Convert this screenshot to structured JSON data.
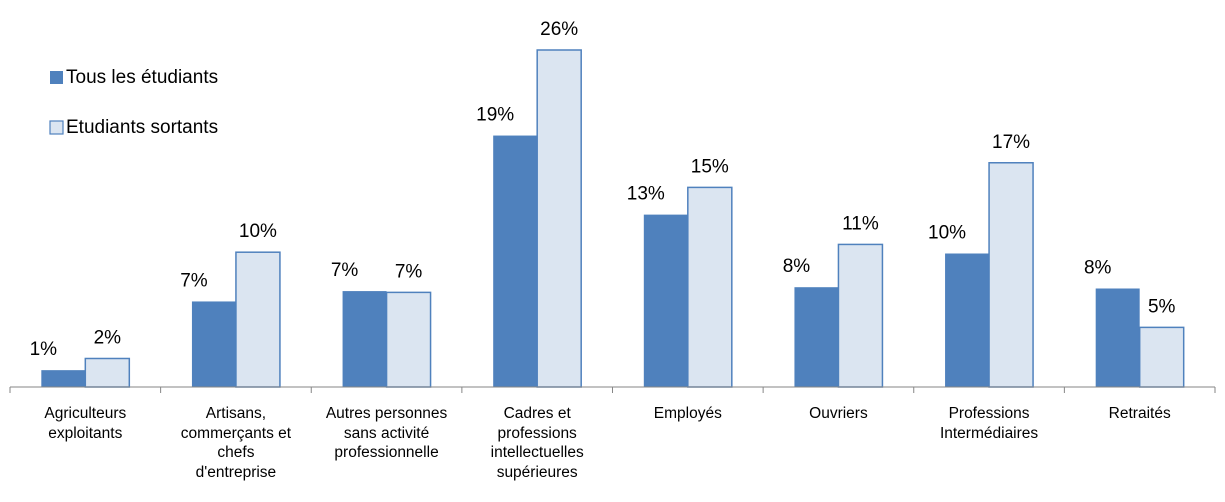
{
  "chart_data": {
    "type": "bar",
    "categories": [
      "Agriculteurs\nexploitants",
      "Artisans,\ncommerçants et\nchefs\nd'entreprise",
      "Autres personnes\nsans activité\nprofessionnelle",
      "Cadres et\nprofessions\nintellectuelles\nsupérieures",
      "Employés",
      "Ouvriers",
      "Professions\nIntermédiaires",
      "Retraités"
    ],
    "series": [
      {
        "name": "Tous les étudiants",
        "color": "#4f81bd",
        "values": [
          1.3,
          6.6,
          7.4,
          19.4,
          13.3,
          7.7,
          10.3,
          7.6
        ],
        "value_labels": [
          "1%",
          "7%",
          "7%",
          "19%",
          "13%",
          "8%",
          "10%",
          "8%"
        ]
      },
      {
        "name": "Etudiants sortants",
        "color": "#dbe5f1",
        "values": [
          2.2,
          10.4,
          7.3,
          26.0,
          15.4,
          11.0,
          17.3,
          4.6
        ],
        "value_labels": [
          "2%",
          "10%",
          "7%",
          "26%",
          "15%",
          "11%",
          "17%",
          "5%"
        ]
      }
    ],
    "legend": "upper left"
  }
}
